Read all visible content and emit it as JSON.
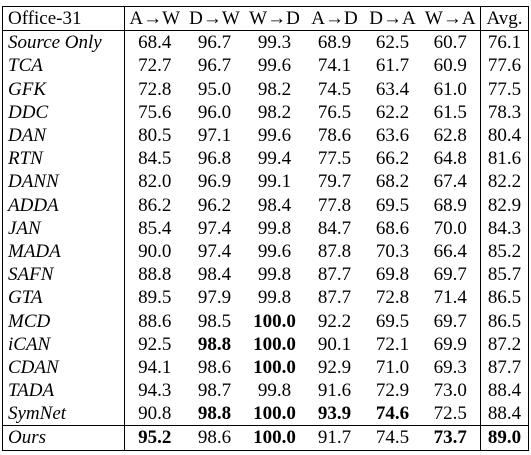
{
  "table": {
    "header": {
      "dataset": "Office-31",
      "columns": [
        "A→W",
        "D→W",
        "W→D",
        "A→D",
        "D→A",
        "W→A",
        "Avg."
      ]
    },
    "rows": [
      {
        "method": "Source Only",
        "values": [
          "68.4",
          "96.7",
          "99.3",
          "68.9",
          "62.5",
          "60.7",
          "76.1"
        ],
        "bold": []
      },
      {
        "method": "TCA",
        "values": [
          "72.7",
          "96.7",
          "99.6",
          "74.1",
          "61.7",
          "60.9",
          "77.6"
        ],
        "bold": []
      },
      {
        "method": "GFK",
        "values": [
          "72.8",
          "95.0",
          "98.2",
          "74.5",
          "63.4",
          "61.0",
          "77.5"
        ],
        "bold": []
      },
      {
        "method": "DDC",
        "values": [
          "75.6",
          "96.0",
          "98.2",
          "76.5",
          "62.2",
          "61.5",
          "78.3"
        ],
        "bold": []
      },
      {
        "method": "DAN",
        "values": [
          "80.5",
          "97.1",
          "99.6",
          "78.6",
          "63.6",
          "62.8",
          "80.4"
        ],
        "bold": []
      },
      {
        "method": "RTN",
        "values": [
          "84.5",
          "96.8",
          "99.4",
          "77.5",
          "66.2",
          "64.8",
          "81.6"
        ],
        "bold": []
      },
      {
        "method": "DANN",
        "values": [
          "82.0",
          "96.9",
          "99.1",
          "79.7",
          "68.2",
          "67.4",
          "82.2"
        ],
        "bold": []
      },
      {
        "method": "ADDA",
        "values": [
          "86.2",
          "96.2",
          "98.4",
          "77.8",
          "69.5",
          "68.9",
          "82.9"
        ],
        "bold": []
      },
      {
        "method": "JAN",
        "values": [
          "85.4",
          "97.4",
          "99.8",
          "84.7",
          "68.6",
          "70.0",
          "84.3"
        ],
        "bold": []
      },
      {
        "method": "MADA",
        "values": [
          "90.0",
          "97.4",
          "99.6",
          "87.8",
          "70.3",
          "66.4",
          "85.2"
        ],
        "bold": []
      },
      {
        "method": "SAFN",
        "values": [
          "88.8",
          "98.4",
          "99.8",
          "87.7",
          "69.8",
          "69.7",
          "85.7"
        ],
        "bold": []
      },
      {
        "method": "GTA",
        "values": [
          "89.5",
          "97.9",
          "99.8",
          "87.7",
          "72.8",
          "71.4",
          "86.5"
        ],
        "bold": []
      },
      {
        "method": "MCD",
        "values": [
          "88.6",
          "98.5",
          "100.0",
          "92.2",
          "69.5",
          "69.7",
          "86.5"
        ],
        "bold": [
          2
        ]
      },
      {
        "method": "iCAN",
        "values": [
          "92.5",
          "98.8",
          "100.0",
          "90.1",
          "72.1",
          "69.9",
          "87.2"
        ],
        "bold": [
          1,
          2
        ]
      },
      {
        "method": "CDAN",
        "values": [
          "94.1",
          "98.6",
          "100.0",
          "92.9",
          "71.0",
          "69.3",
          "87.7"
        ],
        "bold": [
          2
        ]
      },
      {
        "method": "TADA",
        "values": [
          "94.3",
          "98.7",
          "99.8",
          "91.6",
          "72.9",
          "73.0",
          "88.4"
        ],
        "bold": []
      },
      {
        "method": "SymNet",
        "values": [
          "90.8",
          "98.8",
          "100.0",
          "93.9",
          "74.6",
          "72.5",
          "88.4"
        ],
        "bold": [
          1,
          2,
          3,
          4
        ]
      },
      {
        "method": "Ours",
        "values": [
          "95.2",
          "98.6",
          "100.0",
          "91.7",
          "74.5",
          "73.7",
          "89.0"
        ],
        "bold": [
          0,
          2,
          5,
          6
        ]
      }
    ]
  }
}
